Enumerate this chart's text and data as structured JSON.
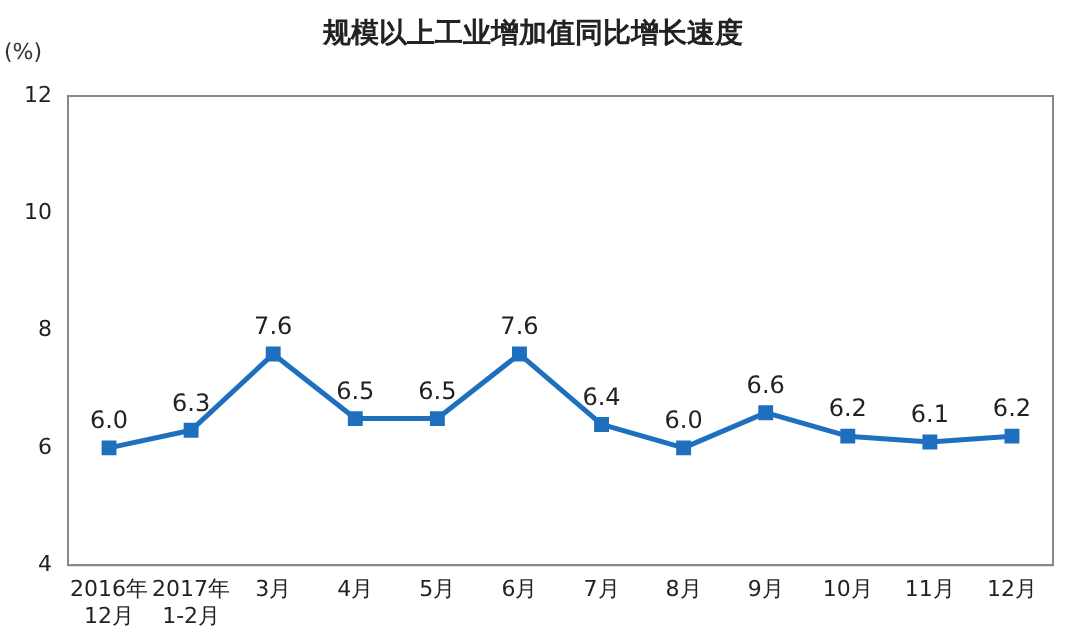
{
  "chart_data": {
    "type": "line",
    "title": "规模以上工业增加值同比增长速度",
    "ylabel": "(%)",
    "categories": [
      "2016年\n12月",
      "2017年\n1-2月",
      "3月",
      "4月",
      "5月",
      "6月",
      "7月",
      "8月",
      "9月",
      "10月",
      "11月",
      "12月"
    ],
    "series": [
      {
        "color": "#1f6fbf",
        "values": [
          6.0,
          6.3,
          7.6,
          6.5,
          6.5,
          7.6,
          6.4,
          6.0,
          6.6,
          6.2,
          6.1,
          6.2
        ],
        "value_labels": [
          "6.0",
          "6.3",
          "7.6",
          "6.5",
          "6.5",
          "7.6",
          "6.4",
          "6.0",
          "6.6",
          "6.2",
          "6.1",
          "6.2"
        ]
      }
    ],
    "ylim": [
      4,
      12
    ],
    "yticks": [
      4,
      6,
      8,
      10,
      12
    ],
    "grid": false,
    "legend": false,
    "marker": "square",
    "line_style": "solid"
  }
}
